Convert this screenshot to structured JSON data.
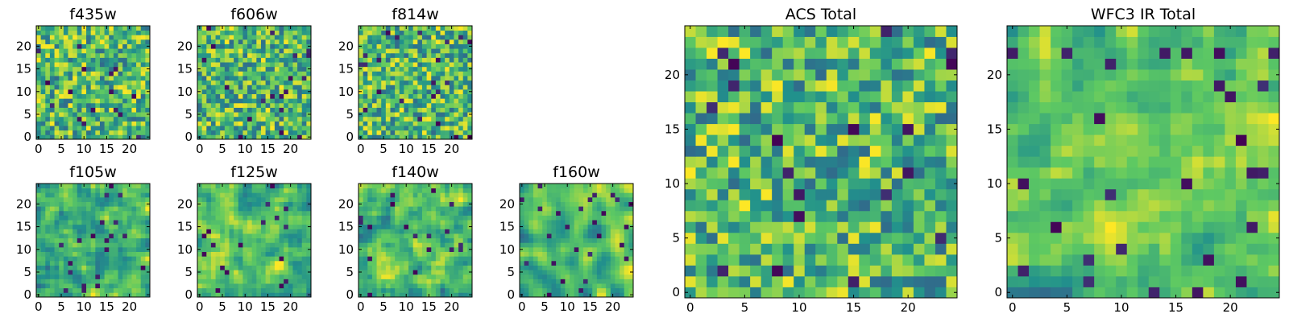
{
  "colormap": {
    "name": "viridis",
    "stops": [
      "#440154",
      "#3b528b",
      "#21918c",
      "#5ec962",
      "#fde725"
    ]
  },
  "chart_data": [
    {
      "type": "heatmap",
      "title": "f435w",
      "grid_size": 25,
      "xticks": [
        0,
        5,
        10,
        15,
        20
      ],
      "yticks": [
        0,
        5,
        10,
        15,
        20
      ],
      "xlim": [
        0,
        24
      ],
      "ylim": [
        0,
        24
      ]
    },
    {
      "type": "heatmap",
      "title": "f606w",
      "grid_size": 25,
      "xticks": [
        0,
        5,
        10,
        15,
        20
      ],
      "yticks": [
        0,
        5,
        10,
        15,
        20
      ],
      "xlim": [
        0,
        24
      ],
      "ylim": [
        0,
        24
      ]
    },
    {
      "type": "heatmap",
      "title": "f814w",
      "grid_size": 25,
      "xticks": [
        0,
        5,
        10,
        15,
        20
      ],
      "yticks": [
        0,
        5,
        10,
        15,
        20
      ],
      "xlim": [
        0,
        24
      ],
      "ylim": [
        0,
        24
      ]
    },
    {
      "type": "heatmap",
      "title": "f105w",
      "grid_size": 25,
      "xticks": [
        0,
        5,
        10,
        15,
        20
      ],
      "yticks": [
        0,
        5,
        10,
        15,
        20
      ],
      "xlim": [
        0,
        24
      ],
      "ylim": [
        0,
        24
      ]
    },
    {
      "type": "heatmap",
      "title": "f125w",
      "grid_size": 25,
      "xticks": [
        0,
        5,
        10,
        15,
        20
      ],
      "yticks": [
        0,
        5,
        10,
        15,
        20
      ],
      "xlim": [
        0,
        24
      ],
      "ylim": [
        0,
        24
      ]
    },
    {
      "type": "heatmap",
      "title": "f140w",
      "grid_size": 25,
      "xticks": [
        0,
        5,
        10,
        15,
        20
      ],
      "yticks": [
        0,
        5,
        10,
        15,
        20
      ],
      "xlim": [
        0,
        24
      ],
      "ylim": [
        0,
        24
      ]
    },
    {
      "type": "heatmap",
      "title": "f160w",
      "grid_size": 25,
      "xticks": [
        0,
        5,
        10,
        15,
        20
      ],
      "yticks": [
        0,
        5,
        10,
        15,
        20
      ],
      "xlim": [
        0,
        24
      ],
      "ylim": [
        0,
        24
      ]
    },
    {
      "type": "heatmap",
      "title": "ACS Total",
      "grid_size": 25,
      "xticks": [
        0,
        5,
        10,
        15,
        20
      ],
      "yticks": [
        0,
        5,
        10,
        15,
        20
      ],
      "xlim": [
        0,
        24
      ],
      "ylim": [
        0,
        24
      ]
    },
    {
      "type": "heatmap",
      "title": "WFC3 IR Total",
      "grid_size": 25,
      "xticks": [
        0,
        5,
        10,
        15,
        20
      ],
      "yticks": [
        0,
        5,
        10,
        15,
        20
      ],
      "xlim": [
        0,
        24
      ],
      "ylim": [
        0,
        24
      ]
    }
  ]
}
